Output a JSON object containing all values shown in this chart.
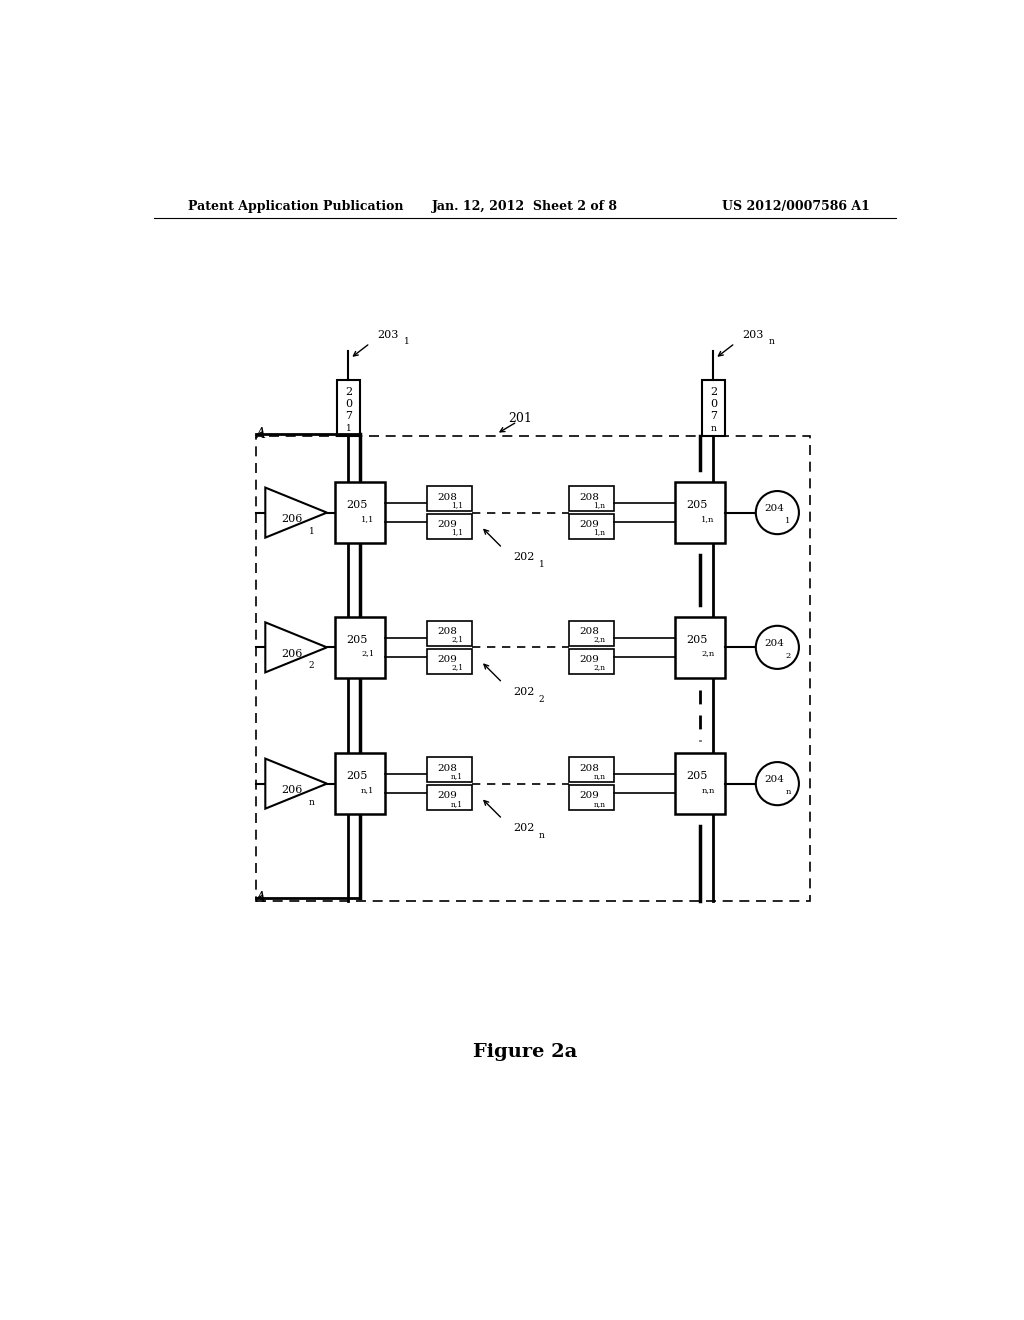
{
  "header_left": "Patent Application Publication",
  "header_mid": "Jan. 12, 2012  Sheet 2 of 8",
  "header_right": "US 2012/0007586 A1",
  "figure_label": "Figure 2a",
  "background": "#ffffff",
  "row_subs": [
    "1",
    "2",
    "n"
  ]
}
